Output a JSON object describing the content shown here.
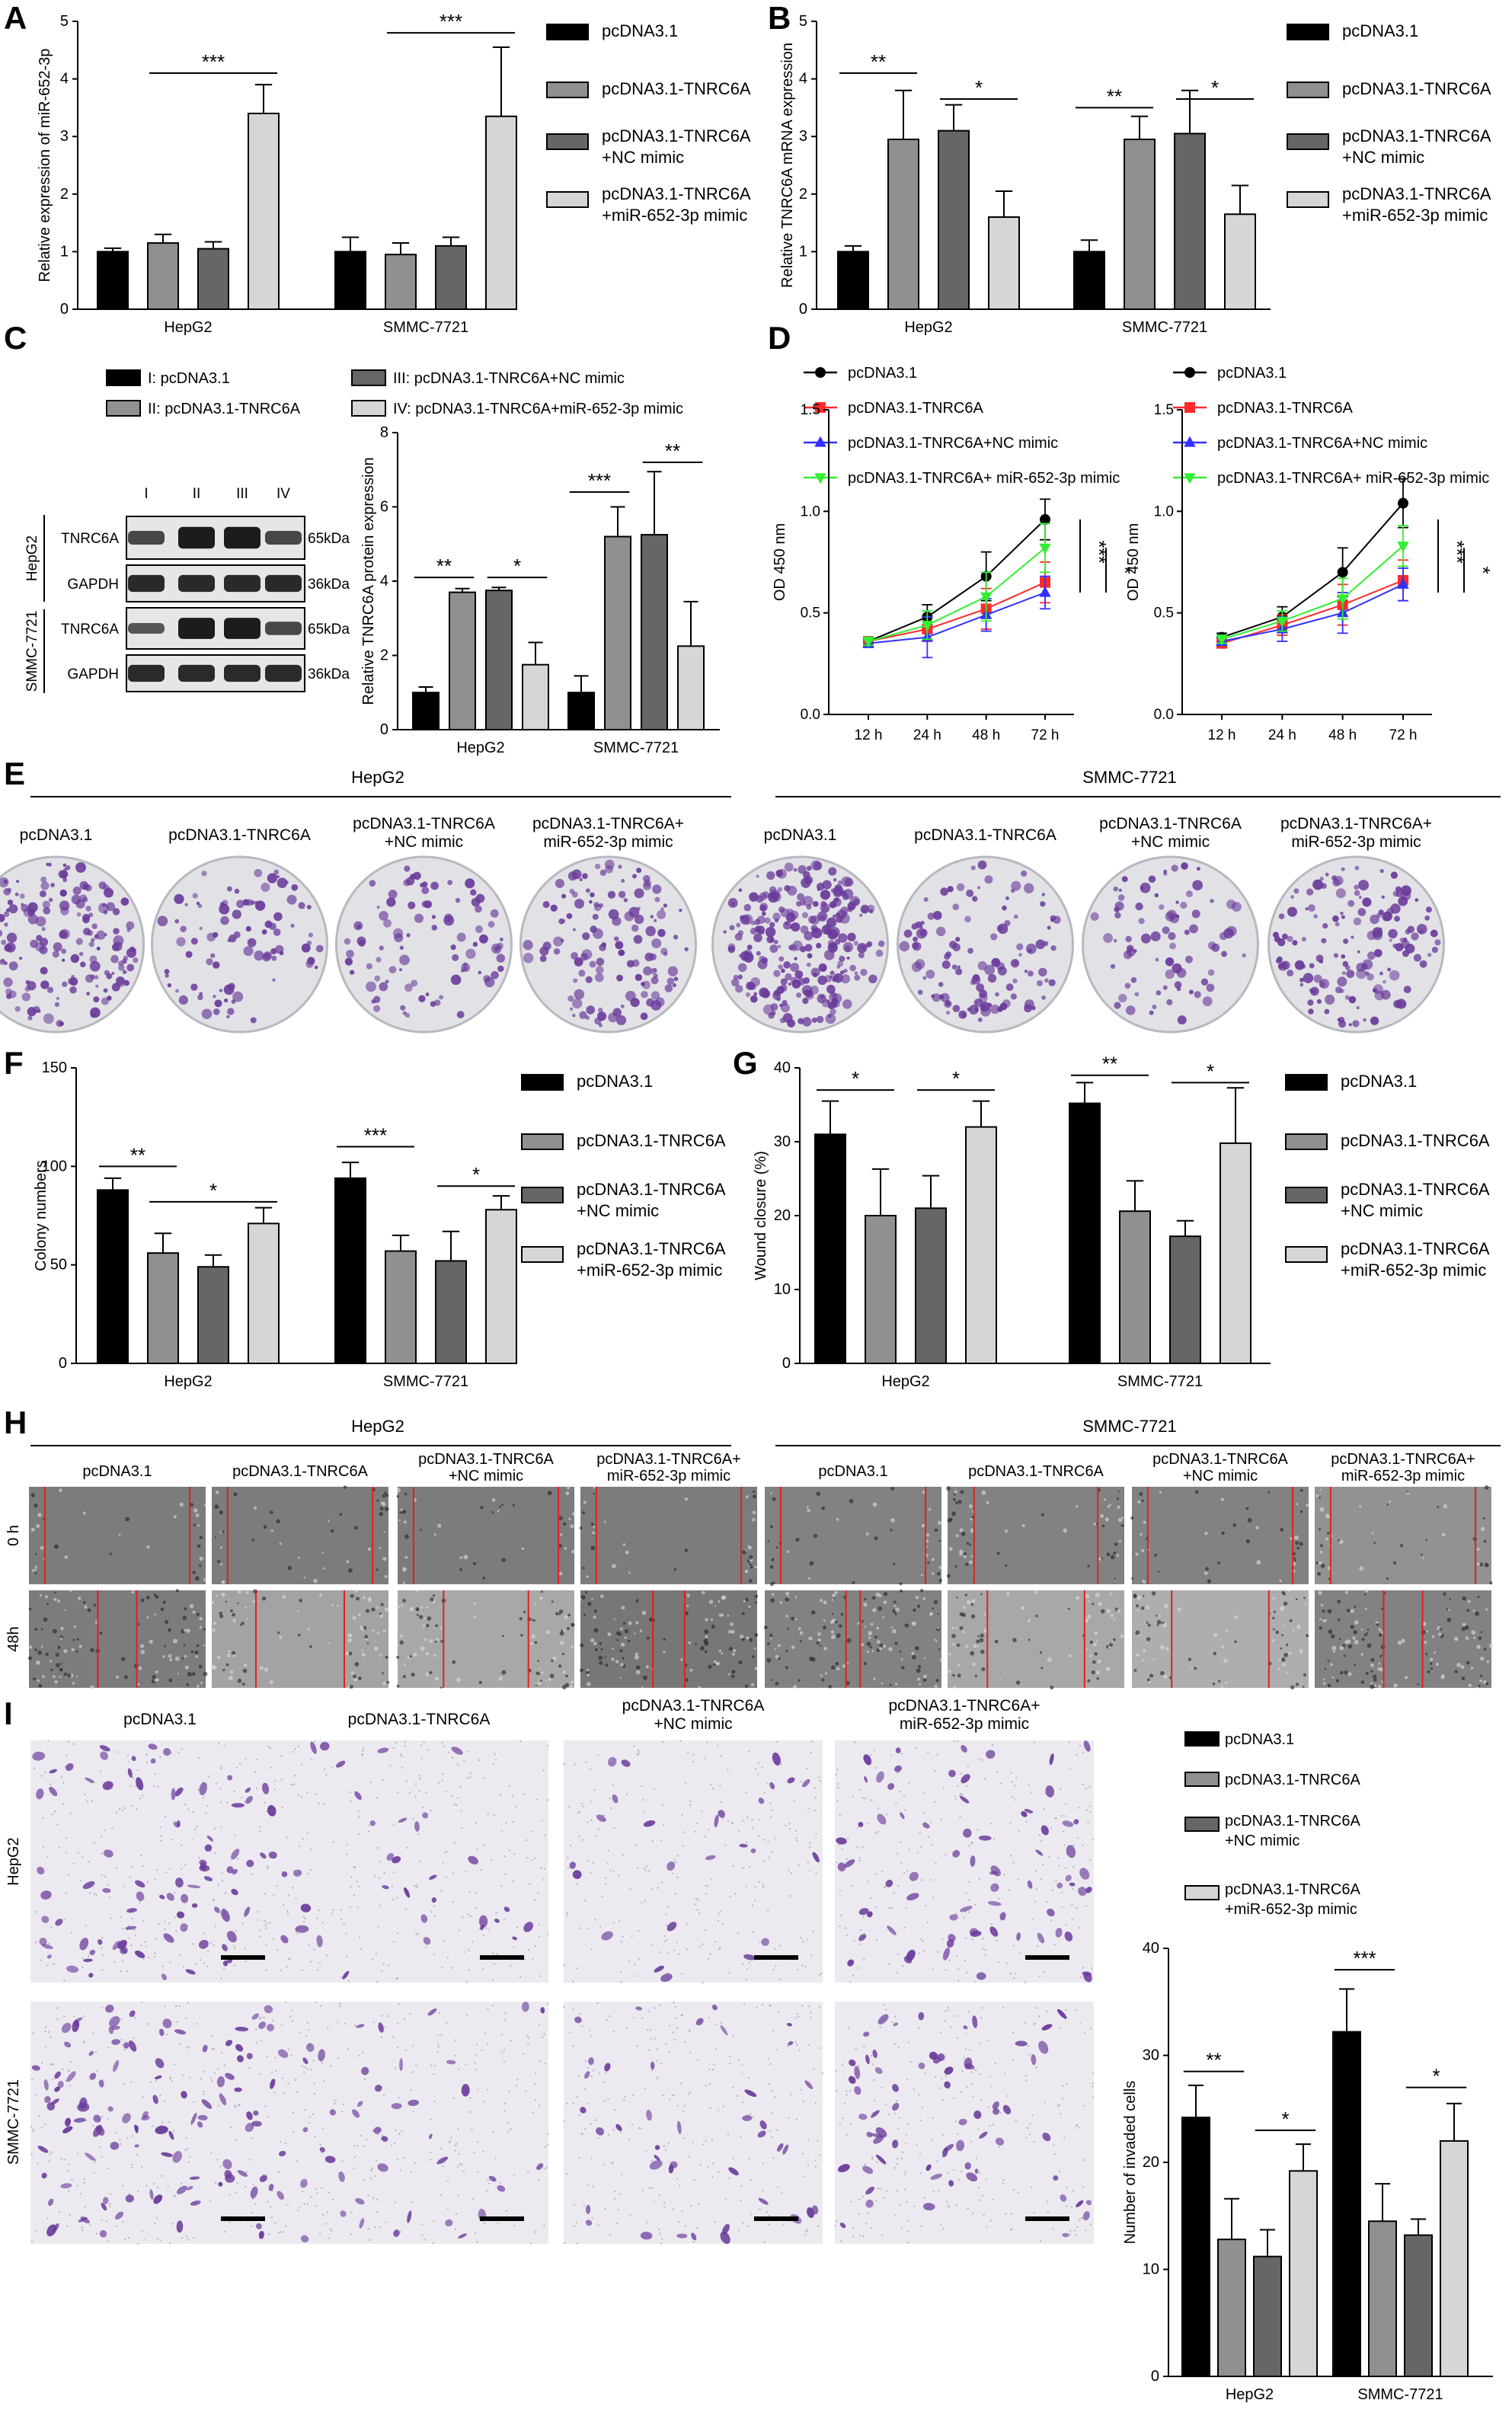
{
  "groups": [
    "pcDNA3.1",
    "pcDNA3.1-TNRC6A",
    "pcDNA3.1-TNRC6A +NC mimic",
    "pcDNA3.1-TNRC6A +miR-652-3p mimic"
  ],
  "legend_bar": [
    [
      "pcDNA3.1"
    ],
    [
      "pcDNA3.1-TNRC6A"
    ],
    [
      "pcDNA3.1-TNRC6A",
      "+NC mimic"
    ],
    [
      "pcDNA3.1-TNRC6A",
      "+miR-652-3p mimic"
    ]
  ],
  "colors": {
    "g1": "#000000",
    "g2": "#909090",
    "g3": "#666666",
    "g4": "#d6d6d6",
    "line1": "#000000",
    "line2": "#ff2a2a",
    "line3": "#3030ff",
    "line4": "#33ee33",
    "crystal": "#6a3a9a",
    "scratch": "#e02020"
  },
  "panels": {
    "A": {
      "letter": "A",
      "ylabel": "Relative expression of miR-652-3p",
      "categories": [
        "HepG2",
        "SMMC-7721"
      ],
      "yticks": [
        "0",
        "1",
        "2",
        "3",
        "4",
        "5"
      ],
      "chart_data": {
        "type": "bar",
        "ylim": [
          0,
          5
        ],
        "series": [
          {
            "values": [
              1.0,
              1.0
            ],
            "err": [
              0.06,
              0.25
            ]
          },
          {
            "values": [
              1.15,
              0.95
            ],
            "err": [
              0.15,
              0.2
            ]
          },
          {
            "values": [
              1.05,
              1.1
            ],
            "err": [
              0.12,
              0.15
            ]
          },
          {
            "values": [
              3.4,
              3.35
            ],
            "err": [
              0.5,
              1.2
            ]
          }
        ],
        "sig": [
          {
            "g1": 1,
            "i": 1,
            "j": 3,
            "y": 4.1,
            "label": "***"
          },
          {
            "g1": 2,
            "i": 1,
            "j": 3,
            "y": 4.8,
            "label": "***"
          }
        ]
      }
    },
    "B": {
      "letter": "B",
      "ylabel": "Relative TNRC6A mRNA expression",
      "categories": [
        "HepG2",
        "SMMC-7721"
      ],
      "yticks": [
        "0",
        "1",
        "2",
        "3",
        "4",
        "5"
      ],
      "chart_data": {
        "type": "bar",
        "ylim": [
          0,
          5
        ],
        "series": [
          {
            "values": [
              1.0,
              1.0
            ],
            "err": [
              0.1,
              0.2
            ]
          },
          {
            "values": [
              2.95,
              2.95
            ],
            "err": [
              0.85,
              0.4
            ]
          },
          {
            "values": [
              3.1,
              3.05
            ],
            "err": [
              0.45,
              0.75
            ]
          },
          {
            "values": [
              1.6,
              1.65
            ],
            "err": [
              0.45,
              0.5
            ]
          }
        ],
        "sig": [
          {
            "g1": 1,
            "i": 0,
            "j": 1,
            "y": 4.1,
            "label": "**"
          },
          {
            "g1": 1,
            "i": 2,
            "j": 3,
            "y": 3.65,
            "label": "*"
          },
          {
            "g1": 2,
            "i": 0,
            "j": 1,
            "y": 3.5,
            "label": "**"
          },
          {
            "g1": 2,
            "i": 2,
            "j": 3,
            "y": 3.65,
            "label": "*"
          }
        ]
      }
    },
    "C": {
      "letter": "C",
      "ylabel": "Relative TNRC6A protein expression",
      "categories": [
        "HepG2",
        "SMMC-7721"
      ],
      "yticks": [
        "0",
        "2",
        "4",
        "6",
        "8"
      ],
      "legend": [
        "I: pcDNA3.1",
        "II: pcDNA3.1-TNRC6A",
        "III: pcDNA3.1-TNRC6A+NC mimic",
        "IV: pcDNA3.1-TNRC6A+miR-652-3p mimic"
      ],
      "blot": {
        "lanes": [
          "I",
          "II",
          "III",
          "IV"
        ],
        "rows": [
          {
            "cell": "HepG2",
            "protein": "TNRC6A",
            "kda": "65kDa",
            "band": [
              0.55,
              1.0,
              1.0,
              0.55
            ]
          },
          {
            "cell": "HepG2",
            "protein": "GAPDH",
            "kda": "36kDa",
            "band": [
              0.85,
              0.85,
              0.85,
              0.85
            ]
          },
          {
            "cell": "SMMC-7721",
            "protein": "TNRC6A",
            "kda": "65kDa",
            "band": [
              0.4,
              1.0,
              1.0,
              0.55
            ]
          },
          {
            "cell": "SMMC-7721",
            "protein": "GAPDH",
            "kda": "36kDa",
            "band": [
              0.85,
              0.85,
              0.85,
              0.85
            ]
          }
        ]
      },
      "chart_data": {
        "type": "bar",
        "ylim": [
          0,
          8
        ],
        "series": [
          {
            "values": [
              1.0,
              1.0
            ],
            "err": [
              0.15,
              0.45
            ]
          },
          {
            "values": [
              3.7,
              5.2
            ],
            "err": [
              0.1,
              0.8
            ]
          },
          {
            "values": [
              3.75,
              5.25
            ],
            "err": [
              0.08,
              1.7
            ]
          },
          {
            "values": [
              1.75,
              2.25
            ],
            "err": [
              0.6,
              1.2
            ]
          }
        ],
        "sig": [
          {
            "g1": 1,
            "i": 0,
            "j": 1,
            "y": 4.1,
            "label": "**"
          },
          {
            "g1": 1,
            "i": 2,
            "j": 3,
            "y": 4.1,
            "label": "*"
          },
          {
            "g1": 2,
            "i": 0,
            "j": 1,
            "y": 6.4,
            "label": "***"
          },
          {
            "g1": 2,
            "i": 2,
            "j": 3,
            "y": 7.2,
            "label": "**"
          }
        ]
      }
    },
    "D": {
      "letter": "D",
      "ylabel": "OD 450 nm",
      "xticks": [
        "12 h",
        "24 h",
        "48 h",
        "72 h"
      ],
      "yticks": [
        "0.0",
        "0.5",
        "1.0",
        "1.5"
      ],
      "legend": [
        "pcDNA3.1",
        "pcDNA3.1-TNRC6A",
        "pcDNA3.1-TNRC6A+NC mimic",
        "pcDNA3.1-TNRC6A+ miR-652-3p mimic"
      ],
      "chart_data": [
        {
          "type": "line",
          "ylim": [
            0,
            1.5
          ],
          "series": [
            {
              "values": [
                0.36,
                0.48,
                0.68,
                0.96
              ],
              "err": [
                0.02,
                0.06,
                0.12,
                0.1
              ]
            },
            {
              "values": [
                0.36,
                0.42,
                0.52,
                0.65
              ],
              "err": [
                0.02,
                0.06,
                0.1,
                0.1
              ]
            },
            {
              "values": [
                0.35,
                0.38,
                0.49,
                0.6
              ],
              "err": [
                0.02,
                0.1,
                0.08,
                0.08
              ]
            },
            {
              "values": [
                0.36,
                0.44,
                0.58,
                0.82
              ],
              "err": [
                0.02,
                0.07,
                0.12,
                0.12
              ]
            }
          ],
          "sig": [
            "***",
            "*"
          ]
        },
        {
          "type": "line",
          "ylim": [
            0,
            1.5
          ],
          "series": [
            {
              "values": [
                0.38,
                0.48,
                0.7,
                1.04
              ],
              "err": [
                0.02,
                0.05,
                0.12,
                0.12
              ]
            },
            {
              "values": [
                0.35,
                0.44,
                0.54,
                0.66
              ],
              "err": [
                0.02,
                0.05,
                0.1,
                0.1
              ]
            },
            {
              "values": [
                0.36,
                0.42,
                0.5,
                0.64
              ],
              "err": [
                0.02,
                0.06,
                0.1,
                0.08
              ]
            },
            {
              "values": [
                0.37,
                0.46,
                0.57,
                0.83
              ],
              "err": [
                0.02,
                0.05,
                0.1,
                0.1
              ]
            }
          ],
          "sig": [
            "***",
            "*"
          ]
        }
      ]
    },
    "E": {
      "letter": "E",
      "titles": [
        "HepG2",
        "SMMC-7721"
      ],
      "labels": [
        [
          "pcDNA3.1"
        ],
        [
          "pcDNA3.1-TNRC6A"
        ],
        [
          "pcDNA3.1-TNRC6A",
          "+NC mimic"
        ],
        [
          "pcDNA3.1-TNRC6A+",
          "miR-652-3p mimic"
        ]
      ],
      "density": [
        180,
        90,
        90,
        130,
        260,
        120,
        80,
        150
      ]
    },
    "F": {
      "letter": "F",
      "ylabel": "Colony numbers",
      "categories": [
        "HepG2",
        "SMMC-7721"
      ],
      "yticks": [
        "0",
        "50",
        "100",
        "150"
      ],
      "chart_data": {
        "type": "bar",
        "ylim": [
          0,
          150
        ],
        "series": [
          {
            "values": [
              88,
              94
            ],
            "err": [
              6,
              8
            ]
          },
          {
            "values": [
              56,
              57
            ],
            "err": [
              10,
              8
            ]
          },
          {
            "values": [
              49,
              52
            ],
            "err": [
              6,
              15
            ]
          },
          {
            "values": [
              71,
              78
            ],
            "err": [
              8,
              7
            ]
          }
        ],
        "sig": [
          {
            "g1": 1,
            "i": 0,
            "j": 1,
            "y": 100,
            "label": "**"
          },
          {
            "g1": 1,
            "i": 1,
            "j": 3,
            "y": 82,
            "label": "*"
          },
          {
            "g1": 2,
            "i": 0,
            "j": 1,
            "y": 110,
            "label": "***"
          },
          {
            "g1": 2,
            "i": 2,
            "j": 3,
            "y": 90,
            "label": "*"
          }
        ]
      }
    },
    "G": {
      "letter": "G",
      "ylabel": "Wound closure (%)",
      "categories": [
        "HepG2",
        "SMMC-7721"
      ],
      "yticks": [
        "0",
        "10",
        "20",
        "30",
        "40"
      ],
      "chart_data": {
        "type": "bar",
        "ylim": [
          0,
          40
        ],
        "series": [
          {
            "values": [
              31,
              35.2
            ],
            "err": [
              4.5,
              2.8
            ]
          },
          {
            "values": [
              20,
              20.6
            ],
            "err": [
              6.3,
              4.1
            ]
          },
          {
            "values": [
              21,
              17.2
            ],
            "err": [
              4.4,
              2.1
            ]
          },
          {
            "values": [
              32,
              29.8
            ],
            "err": [
              3.5,
              7.5
            ]
          }
        ],
        "sig": [
          {
            "g1": 1,
            "i": 0,
            "j": 1,
            "y": 37,
            "label": "*"
          },
          {
            "g1": 1,
            "i": 2,
            "j": 3,
            "y": 37,
            "label": "*"
          },
          {
            "g1": 2,
            "i": 0,
            "j": 1,
            "y": 39,
            "label": "**"
          },
          {
            "g1": 2,
            "i": 2,
            "j": 3,
            "y": 38,
            "label": "*"
          }
        ]
      }
    },
    "H": {
      "letter": "H",
      "titles": [
        "HepG2",
        "SMMC-7721"
      ],
      "labels": [
        [
          "pcDNA3.1"
        ],
        [
          "pcDNA3.1-TNRC6A"
        ],
        [
          "pcDNA3.1-TNRC6A",
          "+NC mimic"
        ],
        [
          "pcDNA3.1-TNRC6A+",
          "miR-652-3p mimic"
        ]
      ],
      "rows": [
        "0 h",
        "48h"
      ],
      "gap_0h": [
        0.82,
        0.82,
        0.82,
        0.82,
        0.82,
        0.7,
        0.82,
        0.82
      ],
      "gap_48h": [
        0.22,
        0.5,
        0.48,
        0.18,
        0.08,
        0.55,
        0.55,
        0.22
      ],
      "bright": [
        0.4,
        0.4,
        0.4,
        0.4,
        0.45,
        0.45,
        0.45,
        0.6,
        0.4,
        0.75,
        0.8,
        0.35,
        0.45,
        0.8,
        0.85,
        0.45
      ]
    },
    "I": {
      "letter": "I",
      "labels": [
        [
          "pcDNA3.1"
        ],
        [
          "pcDNA3.1-TNRC6A"
        ],
        [
          "pcDNA3.1-TNRC6A",
          "+NC mimic"
        ],
        [
          "pcDNA3.1-TNRC6A+",
          "miR-652-3p mimic"
        ]
      ],
      "rows": [
        "HepG2",
        "SMMC-7721"
      ],
      "density": [
        85,
        30,
        25,
        70,
        110,
        40,
        40,
        65
      ],
      "ylabel": "Number of invaded cells",
      "categories": [
        "HepG2",
        "SMMC-7721"
      ],
      "yticks": [
        "0",
        "10",
        "20",
        "30",
        "40"
      ],
      "chart_data": {
        "type": "bar",
        "ylim": [
          0,
          40
        ],
        "series": [
          {
            "values": [
              24.2,
              32.2
            ],
            "err": [
              3,
              4
            ]
          },
          {
            "values": [
              12.8,
              14.5
            ],
            "err": [
              3.8,
              3.5
            ]
          },
          {
            "values": [
              11.2,
              13.2
            ],
            "err": [
              2.5,
              1.5
            ]
          },
          {
            "values": [
              19.2,
              22
            ],
            "err": [
              2.5,
              3.5
            ]
          }
        ],
        "sig": [
          {
            "g1": 1,
            "i": 0,
            "j": 1,
            "y": 28.5,
            "label": "**"
          },
          {
            "g1": 1,
            "i": 2,
            "j": 3,
            "y": 23,
            "label": "*"
          },
          {
            "g1": 2,
            "i": 0,
            "j": 1,
            "y": 38,
            "label": "***"
          },
          {
            "g1": 2,
            "i": 2,
            "j": 3,
            "y": 27,
            "label": "*"
          }
        ]
      }
    }
  }
}
